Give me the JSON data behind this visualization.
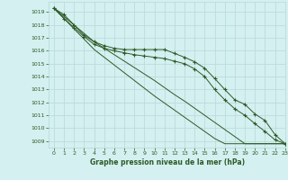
{
  "title": "Graphe pression niveau de la mer (hPa)",
  "background_color": "#d4f0f0",
  "grid_color": "#b8d8d8",
  "line_color": "#2d5a27",
  "xlim": [
    -0.5,
    23
  ],
  "ylim": [
    1008.5,
    1019.8
  ],
  "yticks": [
    1009,
    1010,
    1011,
    1012,
    1013,
    1014,
    1015,
    1016,
    1017,
    1018,
    1019
  ],
  "xticks": [
    0,
    1,
    2,
    3,
    4,
    5,
    6,
    7,
    8,
    9,
    10,
    11,
    12,
    13,
    14,
    15,
    16,
    17,
    18,
    19,
    20,
    21,
    22,
    23
  ],
  "line1_markers": [
    1019.3,
    1018.8,
    1018.0,
    1017.2,
    1016.7,
    1016.4,
    1016.2,
    1016.1,
    1016.1,
    1016.1,
    1016.1,
    1016.1,
    1015.8,
    1015.5,
    1015.15,
    1014.65,
    1013.85,
    1013.0,
    1012.2,
    1011.85,
    1011.1,
    1010.6,
    1009.5,
    1008.8
  ],
  "line2_markers": [
    1019.3,
    1018.5,
    1017.8,
    1017.1,
    1016.5,
    1016.2,
    1016.0,
    1015.85,
    1015.7,
    1015.6,
    1015.5,
    1015.4,
    1015.2,
    1015.0,
    1014.6,
    1014.0,
    1013.0,
    1012.2,
    1011.5,
    1011.0,
    1010.35,
    1009.75,
    1009.1,
    1008.8
  ],
  "line3_straight": [
    1019.3,
    1018.65,
    1018.0,
    1017.35,
    1016.7,
    1016.2,
    1015.7,
    1015.2,
    1014.7,
    1014.2,
    1013.7,
    1013.15,
    1012.6,
    1012.1,
    1011.55,
    1011.0,
    1010.45,
    1009.9,
    1009.35,
    1008.8,
    1008.8,
    1008.8,
    1008.8,
    1008.8
  ],
  "line4_straight": [
    1019.3,
    1018.5,
    1017.7,
    1016.9,
    1016.1,
    1015.5,
    1014.9,
    1014.3,
    1013.7,
    1013.1,
    1012.5,
    1011.95,
    1011.4,
    1010.85,
    1010.3,
    1009.75,
    1009.2,
    1008.8,
    1008.8,
    1008.8,
    1008.8,
    1008.8,
    1008.8,
    1008.8
  ]
}
